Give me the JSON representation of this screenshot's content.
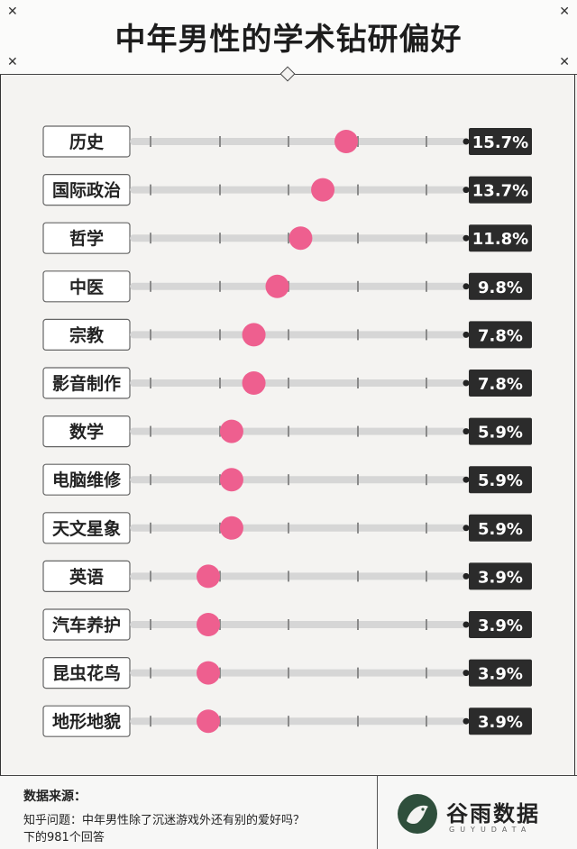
{
  "header": {
    "title": "中年男性的学术钻研偏好"
  },
  "chart_data": {
    "type": "dot",
    "title": "中年男性的学术钻研偏好",
    "categories": [
      "历史",
      "国际政治",
      "哲学",
      "中医",
      "宗教",
      "影音制作",
      "数学",
      "电脑维修",
      "天文星象",
      "英语",
      "汽车养护",
      "昆虫花鸟",
      "地形地貌"
    ],
    "values": [
      15.7,
      13.7,
      11.8,
      9.8,
      7.8,
      7.8,
      5.9,
      5.9,
      5.9,
      3.9,
      3.9,
      3.9,
      3.9
    ],
    "value_labels": [
      "15.7%",
      "13.7%",
      "11.8%",
      "9.8%",
      "7.8%",
      "7.8%",
      "5.9%",
      "5.9%",
      "5.9%",
      "3.9%",
      "3.9%",
      "3.9%",
      "3.9%"
    ],
    "unit": "%",
    "colors": {
      "dot": "#ee5f8f",
      "track": "#d6d6d6",
      "tick": "#8a8a8a",
      "badge": "#2b2b2b",
      "badge_text": "#ffffff"
    }
  },
  "footer": {
    "source_title": "数据来源：",
    "source_lines": [
      "知乎问题：中年男性除了沉迷游戏外还有别的爱好吗？",
      "下的981个回答"
    ],
    "brand": "谷雨数据",
    "brand_sub": "GUYUDATA",
    "logo_icon": "bird-logo-icon"
  }
}
